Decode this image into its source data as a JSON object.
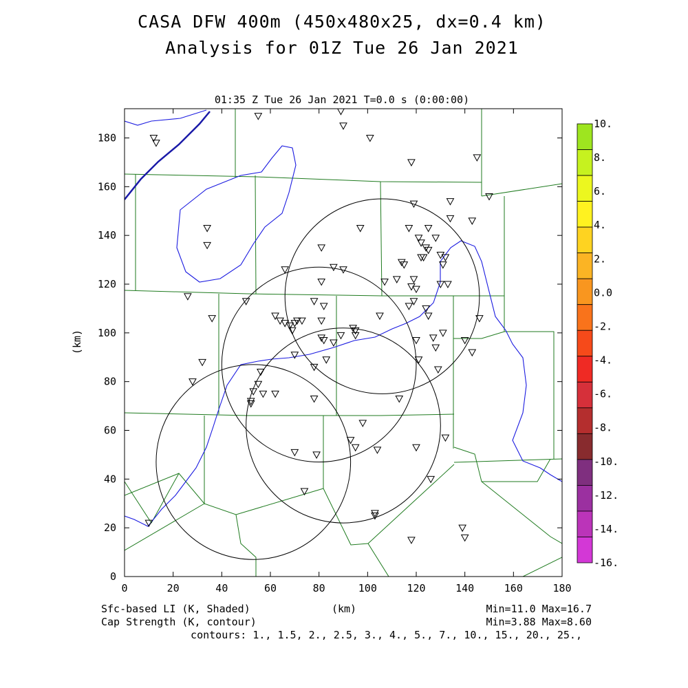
{
  "title_line1": "CASA DFW 400m (450x480x25, dx=0.4 km)",
  "title_line2": "Analysis for 01Z Tue 26 Jan 2021",
  "plot_header": "01:35 Z Tue 26 Jan 2021   T=0.0 s (0:00:00)",
  "footer": {
    "left1": "Sfc-based LI (K, Shaded)",
    "left2": "Cap Strength (K, contour)",
    "center": "(km)",
    "right1": "Min=11.0 Max=16.7",
    "right2": "Min=3.88 Max=8.60",
    "contours": "contours: 1., 1.5, 2., 2.5, 3., 4., 5., 7., 10., 15., 20., 25.,"
  },
  "colorbar": {
    "labels": [
      "10.",
      "8.",
      "6.",
      "4.",
      "2.",
      "0.0",
      "-2.",
      "-4.",
      "-6.",
      "-8.",
      "-10.",
      "-12.",
      "-14.",
      "-16."
    ],
    "colors": [
      "#9ee51f",
      "#c6f21f",
      "#ecf71f",
      "#fff220",
      "#fed321",
      "#fbb424",
      "#f9961f",
      "#f9731b",
      "#f64a1a",
      "#ef2a24",
      "#d6303a",
      "#b42e2e",
      "#882b2e",
      "#7f2f7f",
      "#9b30a0",
      "#bb34b9",
      "#d338d6"
    ]
  },
  "chart_data": {
    "type": "scatter",
    "xlabel": "(km)",
    "ylabel": "(km)",
    "xlim": [
      0,
      180
    ],
    "ylim": [
      0,
      192
    ],
    "xticks": [
      "0",
      "20",
      "40",
      "60",
      "80",
      "100",
      "120",
      "140",
      "160",
      "180"
    ],
    "yticks": [
      "0",
      "20",
      "40",
      "60",
      "80",
      "100",
      "120",
      "140",
      "160",
      "180"
    ],
    "radar_rings": [
      {
        "cx": 53,
        "cy": 47,
        "r": 40
      },
      {
        "cx": 80,
        "cy": 87,
        "r": 40
      },
      {
        "cx": 90,
        "cy": 62,
        "r": 40
      },
      {
        "cx": 106,
        "cy": 115,
        "r": 40
      }
    ],
    "stations": [
      [
        55,
        189
      ],
      [
        89,
        191
      ],
      [
        90,
        185
      ],
      [
        101,
        180
      ],
      [
        12,
        180
      ],
      [
        13,
        178
      ],
      [
        118,
        170
      ],
      [
        145,
        172
      ],
      [
        150,
        156
      ],
      [
        119,
        153
      ],
      [
        134,
        154
      ],
      [
        134,
        147
      ],
      [
        143,
        146
      ],
      [
        97,
        143
      ],
      [
        117,
        143
      ],
      [
        125,
        143
      ],
      [
        34,
        143
      ],
      [
        34,
        136
      ],
      [
        121,
        139
      ],
      [
        128,
        139
      ],
      [
        122,
        137
      ],
      [
        124,
        135
      ],
      [
        125,
        134
      ],
      [
        123,
        131
      ],
      [
        122,
        131
      ],
      [
        132,
        131
      ],
      [
        130,
        132
      ],
      [
        131,
        128
      ],
      [
        114,
        129
      ],
      [
        115,
        128
      ],
      [
        81,
        135
      ],
      [
        86,
        127
      ],
      [
        90,
        126
      ],
      [
        66,
        126
      ],
      [
        81,
        121
      ],
      [
        107,
        121
      ],
      [
        112,
        122
      ],
      [
        119,
        122
      ],
      [
        120,
        118
      ],
      [
        118,
        119
      ],
      [
        130,
        120
      ],
      [
        133,
        120
      ],
      [
        26,
        115
      ],
      [
        50,
        113
      ],
      [
        78,
        113
      ],
      [
        82,
        111
      ],
      [
        117,
        111
      ],
      [
        119,
        113
      ],
      [
        124,
        110
      ],
      [
        125,
        107
      ],
      [
        105,
        107
      ],
      [
        36,
        106
      ],
      [
        62,
        107
      ],
      [
        64,
        105
      ],
      [
        66,
        104
      ],
      [
        68,
        103
      ],
      [
        70,
        104
      ],
      [
        71,
        105
      ],
      [
        73,
        105
      ],
      [
        81,
        105
      ],
      [
        69,
        101
      ],
      [
        94,
        102
      ],
      [
        95,
        101
      ],
      [
        95,
        99
      ],
      [
        89,
        99
      ],
      [
        81,
        98
      ],
      [
        82,
        97
      ],
      [
        86,
        96
      ],
      [
        120,
        97
      ],
      [
        127,
        98
      ],
      [
        131,
        100
      ],
      [
        128,
        94
      ],
      [
        140,
        97
      ],
      [
        143,
        92
      ],
      [
        146,
        106
      ],
      [
        32,
        88
      ],
      [
        70,
        91
      ],
      [
        83,
        89
      ],
      [
        121,
        89
      ],
      [
        129,
        85
      ],
      [
        78,
        86
      ],
      [
        56,
        84
      ],
      [
        55,
        79
      ],
      [
        53,
        76
      ],
      [
        52,
        72
      ],
      [
        52,
        71
      ],
      [
        57,
        75
      ],
      [
        62,
        75
      ],
      [
        78,
        73
      ],
      [
        113,
        73
      ],
      [
        98,
        63
      ],
      [
        93,
        56
      ],
      [
        95,
        53
      ],
      [
        104,
        52
      ],
      [
        120,
        53
      ],
      [
        132,
        57
      ],
      [
        70,
        51
      ],
      [
        79,
        50
      ],
      [
        126,
        40
      ],
      [
        74,
        35
      ],
      [
        103,
        26
      ],
      [
        103,
        25
      ],
      [
        10,
        22
      ],
      [
        28,
        80
      ],
      [
        139,
        20
      ],
      [
        140,
        16
      ],
      [
        118,
        15
      ]
    ]
  }
}
